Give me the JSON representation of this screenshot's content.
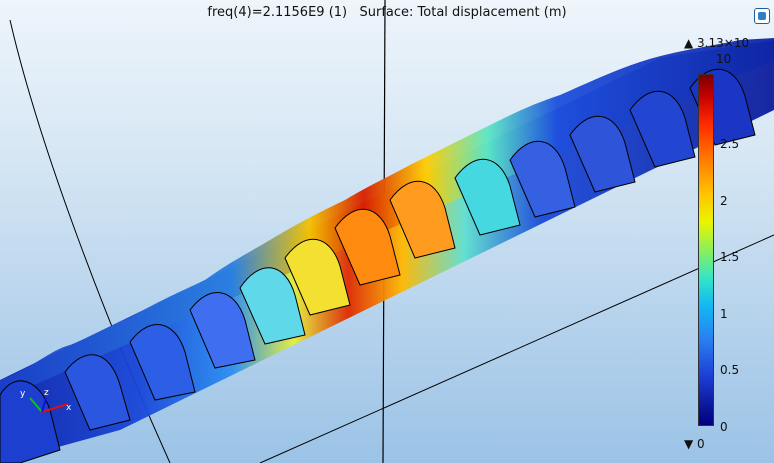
{
  "plot": {
    "title": "freq(4)=2.1156E9 (1)   Surface: Total displacement (m)"
  },
  "colorbar": {
    "max_text": "▲ 3.13×10",
    "max_exp": "10",
    "min_text": "▼ 0",
    "ticks": [
      "2.5",
      "2",
      "1.5",
      "1",
      "0.5",
      "0"
    ],
    "colors": [
      "#7a0000",
      "#ff2a00",
      "#ffc400",
      "#8cf05a",
      "#12b8f2",
      "#1d3fd6",
      "#00007f"
    ]
  },
  "axes_triad": {
    "labels": [
      "y",
      "z",
      "x"
    ]
  },
  "scene": {
    "structure": "periodic slotted waveguide segment",
    "background_top": "#eef5fb",
    "background_bottom": "#9bc3e6"
  }
}
